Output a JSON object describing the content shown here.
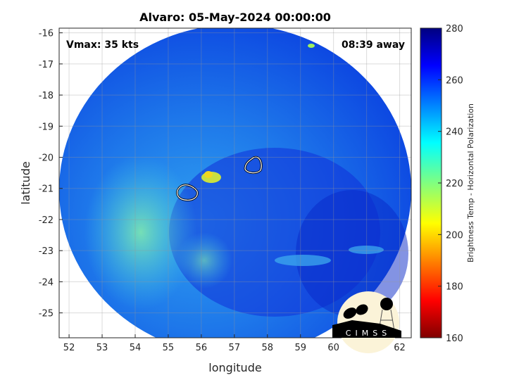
{
  "title": "Alvaro: 05-May-2024 00:00:00",
  "annotations": {
    "vmax": "Vmax: 35 kts",
    "time_away": "08:39 away"
  },
  "chart_data": {
    "type": "heatmap",
    "xlabel": "longitude",
    "ylabel": "latitude",
    "xlim": [
      51.7,
      62.35
    ],
    "ylim": [
      -25.8,
      -15.85
    ],
    "xticks": [
      "52",
      "53",
      "54",
      "55",
      "56",
      "57",
      "58",
      "59",
      "60",
      "61",
      "62"
    ],
    "yticks": [
      "-16",
      "-17",
      "-18",
      "-19",
      "-20",
      "-21",
      "-22",
      "-23",
      "-24",
      "-25"
    ],
    "grid": true,
    "colorbar": {
      "label": "Brightness Temp - Horizontal Polarization",
      "range": [
        160,
        280
      ],
      "ticks": [
        "280",
        "260",
        "240",
        "220",
        "200",
        "180",
        "160"
      ],
      "colormap": "jet"
    }
  },
  "logo": {
    "text": "CIMSS"
  }
}
